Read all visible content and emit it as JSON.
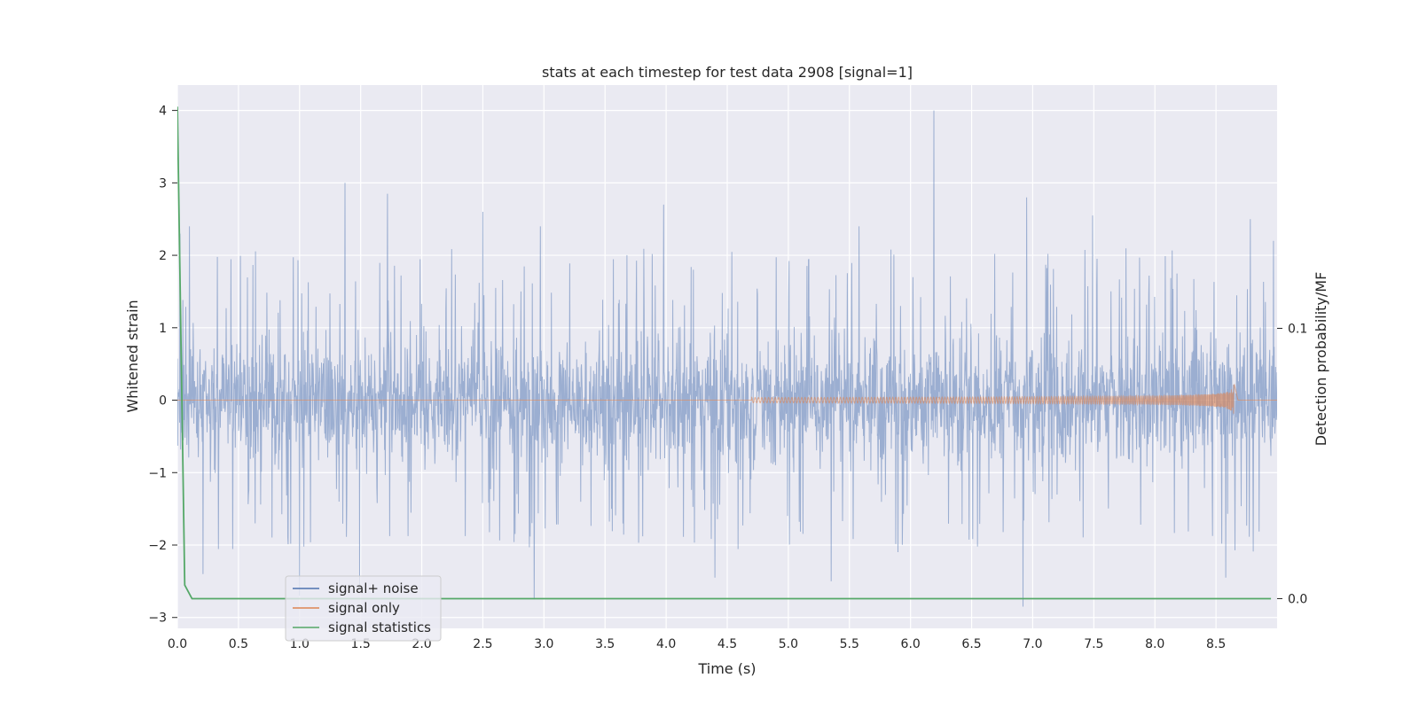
{
  "chart_data": {
    "type": "line",
    "title": "stats at each timestep for test data 2908 [signal=1]",
    "xlabel": "Time (s)",
    "ylabel": "Whitened strain",
    "ylabel_right": "Detection probability/MF",
    "xlim": [
      0.0,
      9.0
    ],
    "ylim": [
      -3.15,
      4.35
    ],
    "ylim_right": [
      -0.011,
      0.19
    ],
    "xticks": [
      "0.0",
      "0.5",
      "1.0",
      "1.5",
      "2.0",
      "2.5",
      "3.0",
      "3.5",
      "4.0",
      "4.5",
      "5.0",
      "5.5",
      "6.0",
      "6.5",
      "7.0",
      "7.5",
      "8.0",
      "8.5"
    ],
    "yticks": [
      "4",
      "3",
      "2",
      "1",
      "0",
      "−1",
      "−2",
      "−3"
    ],
    "yticks_right": [
      "0.1",
      "0.0"
    ],
    "grid": true,
    "legend_position": "lower-left",
    "colors": {
      "noise": "#4c72b0",
      "signal": "#dd8452",
      "stats": "#55a868",
      "background": "#eaeaf2",
      "grid": "#ffffff"
    },
    "series": [
      {
        "name": "signal+ noise",
        "axis": "left",
        "kind": "noise-trace",
        "x_range": [
          0.0,
          9.0
        ],
        "typical_amplitude": 1.0,
        "peaks": [
          {
            "x": 0.02,
            "y": 2.3
          },
          {
            "x": 0.1,
            "y": 2.4
          },
          {
            "x": 1.37,
            "y": 3.0
          },
          {
            "x": 1.72,
            "y": 2.85
          },
          {
            "x": 2.5,
            "y": 2.6
          },
          {
            "x": 2.97,
            "y": 2.4
          },
          {
            "x": 3.98,
            "y": 2.7
          },
          {
            "x": 5.58,
            "y": 2.4
          },
          {
            "x": 6.19,
            "y": 4.0
          },
          {
            "x": 6.95,
            "y": 2.8
          },
          {
            "x": 7.49,
            "y": 2.55
          },
          {
            "x": 8.78,
            "y": 2.5
          },
          {
            "x": 8.97,
            "y": 2.2
          }
        ],
        "troughs": [
          {
            "x": 0.21,
            "y": -2.4
          },
          {
            "x": 1.0,
            "y": -2.7
          },
          {
            "x": 1.49,
            "y": -2.55
          },
          {
            "x": 2.92,
            "y": -2.75
          },
          {
            "x": 4.4,
            "y": -2.45
          },
          {
            "x": 5.35,
            "y": -2.5
          },
          {
            "x": 6.92,
            "y": -2.85
          },
          {
            "x": 8.58,
            "y": -2.45
          }
        ]
      },
      {
        "name": "signal only",
        "axis": "left",
        "kind": "chirp",
        "x_start": 4.7,
        "x_peak": 8.65,
        "peak_amplitude": 0.45,
        "x_end": 8.68
      },
      {
        "name": "signal statistics",
        "axis": "right",
        "x": [
          0.0,
          0.06,
          0.12,
          8.95
        ],
        "y": [
          0.182,
          0.005,
          0.0,
          0.0
        ]
      }
    ]
  }
}
